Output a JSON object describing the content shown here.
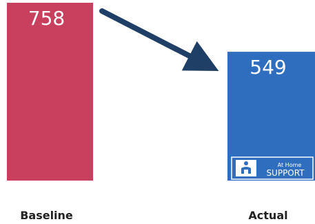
{
  "chart_data": {
    "type": "bar",
    "categories": [
      "Baseline",
      "Actual"
    ],
    "values": [
      758,
      549
    ],
    "ylim": [
      0,
      758
    ],
    "data_labels": [
      "758",
      "549"
    ],
    "title": "",
    "xlabel": "",
    "ylabel": "",
    "grid": false,
    "colors": {
      "bar_0": "#c8405e",
      "bar_1": "#2f6dbe",
      "arrow": "#1f3f66",
      "label": "#ffffff",
      "axis_text": "#222222"
    }
  },
  "logo": {
    "line1": "At Home",
    "line2": "SUPPORT",
    "icon": "person-in-chair-icon"
  }
}
